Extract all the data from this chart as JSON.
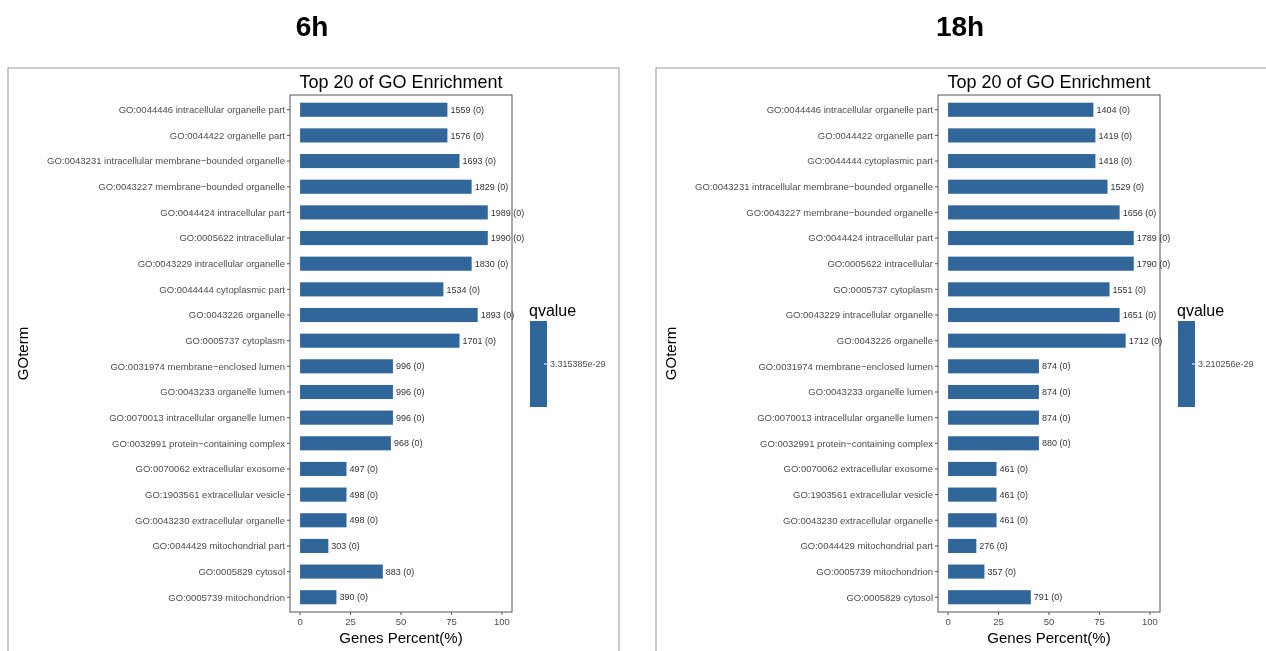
{
  "chart_data": [
    {
      "type": "bar",
      "orientation": "horizontal",
      "subtitle": "6h",
      "title": "Top 20 of GO Enrichment",
      "xlabel": "Genes Percent(%)",
      "ylabel": "GOterm",
      "clabel": "qvalue",
      "color": "#31669a",
      "categories": [
        "GO:0044446 intracellular organelle part",
        "GO:0044422 organelle part",
        "GO:0043231 intracellular membrane−bounded organelle",
        "GO:0043227 membrane−bounded organelle",
        "GO:0044424 intracellular part",
        "GO:0005622 intracellular",
        "GO:0043229 intracellular organelle",
        "GO:0044444 cytoplasmic part",
        "GO:0043226 organelle",
        "GO:0005737 cytoplasm",
        "GO:0031974 membrane−enclosed lumen",
        "GO:0043233 organelle lumen",
        "GO:0070013 intracellular organelle lumen",
        "GO:0032991 protein−containing complex",
        "GO:0070062 extracellular exosome",
        "GO:1903561 extracellular vesicle",
        "GO:0043230 extracellular organelle",
        "GO:0044429 mitochondrial part",
        "GO:0005829 cytosol",
        "GO:0005739 mitochondrion"
      ],
      "values": [
        73,
        73,
        79,
        85,
        93,
        93,
        85,
        71,
        88,
        79,
        46,
        46,
        46,
        45,
        23,
        23,
        23,
        14,
        41,
        18
      ],
      "annotations": [
        "3.315385e-29",
        {
          "text": "1559 (0)",
          "x": 73,
          "y": "GO:0044446 intracellular organelle part"
        },
        {
          "text": "1576 (0)",
          "x": 73,
          "y": "GO:0044422 organelle part"
        },
        {
          "text": "1693 (0)",
          "x": 79,
          "y": "GO:0043231 intracellular membrane−bounded organelle"
        },
        {
          "text": "1829 (0)",
          "x": 85,
          "y": "GO:0043227 membrane−bounded organelle"
        },
        {
          "text": "1989 (0)",
          "x": 93,
          "y": "GO:0044424 intracellular part"
        },
        {
          "text": "1990 (0)",
          "x": 93,
          "y": "GO:0005622 intracellular"
        },
        {
          "text": "1830 (0)",
          "x": 85,
          "y": "GO:0043229 intracellular organelle"
        },
        {
          "text": "1534 (0)",
          "x": 71,
          "y": "GO:0044444 cytoplasmic part"
        },
        {
          "text": "1893 (0)",
          "x": 88,
          "y": "GO:0043226 organelle"
        },
        {
          "text": "1701 (0)",
          "x": 79,
          "y": "GO:0005737 cytoplasm"
        },
        {
          "text": "996 (0)",
          "x": 46,
          "y": "GO:0031974 membrane−enclosed lumen"
        },
        {
          "text": "996 (0)",
          "x": 46,
          "y": "GO:0043233 organelle lumen"
        },
        {
          "text": "996 (0)",
          "x": 46,
          "y": "GO:0070013 intracellular organelle lumen"
        },
        {
          "text": "968 (0)",
          "x": 45,
          "y": "GO:0032991 protein−containing complex"
        },
        {
          "text": "497 (0)",
          "x": 23,
          "y": "GO:0070062 extracellular exosome"
        },
        {
          "text": "498 (0)",
          "x": 23,
          "y": "GO:1903561 extracellular vesicle"
        },
        {
          "text": "498 (0)",
          "x": 23,
          "y": "GO:0043230 extracellular organelle"
        },
        {
          "text": "303 (0)",
          "x": 14,
          "y": "GO:0044429 mitochondrial part"
        },
        {
          "text": "883 (0)",
          "x": 41,
          "y": "GO:0005829 cytosol"
        },
        {
          "text": "390 (0)",
          "x": 18,
          "y": "GO:0005739 mitochondrion"
        }
      ],
      "xlim": [
        -5,
        105
      ],
      "xticks": [
        0,
        25,
        50,
        75,
        100
      ]
    },
    {
      "type": "bar",
      "orientation": "horizontal",
      "subtitle": "18h",
      "title": "Top 20 of GO Enrichment",
      "xlabel": "Genes Percent(%)",
      "ylabel": "GOterm",
      "clabel": "qvalue",
      "color": "#31669a",
      "categories": [
        "GO:0044446 intracellular organelle part",
        "GO:0044422 organelle part",
        "GO:0044444 cytoplasmic part",
        "GO:0043231 intracellular membrane−bounded organelle",
        "GO:0043227 membrane−bounded organelle",
        "GO:0044424 intracellular part",
        "GO:0005622 intracellular",
        "GO:0005737 cytoplasm",
        "GO:0043229 intracellular organelle",
        "GO:0043226 organelle",
        "GO:0031974 membrane−enclosed lumen",
        "GO:0043233 organelle lumen",
        "GO:0070013 intracellular organelle lumen",
        "GO:0032991 protein−containing complex",
        "GO:0070062 extracellular exosome",
        "GO:1903561 extracellular vesicle",
        "GO:0043230 extracellular organelle",
        "GO:0044429 mitochondrial part",
        "GO:0005739 mitochondrion",
        "GO:0005829 cytosol"
      ],
      "values": [
        72,
        73,
        73,
        79,
        85,
        92,
        92,
        80,
        85,
        88,
        45,
        45,
        45,
        45,
        24,
        24,
        24,
        14,
        18,
        41
      ],
      "annotations": [
        "3.210256e-29",
        {
          "text": "1404 (0)",
          "x": 72,
          "y": "GO:0044446 intracellular organelle part"
        },
        {
          "text": "1419 (0)",
          "x": 73,
          "y": "GO:0044422 organelle part"
        },
        {
          "text": "1418 (0)",
          "x": 73,
          "y": "GO:0044444 cytoplasmic part"
        },
        {
          "text": "1529 (0)",
          "x": 79,
          "y": "GO:0043231 intracellular membrane−bounded organelle"
        },
        {
          "text": "1656 (0)",
          "x": 85,
          "y": "GO:0043227 membrane−bounded organelle"
        },
        {
          "text": "1789 (0)",
          "x": 92,
          "y": "GO:0044424 intracellular part"
        },
        {
          "text": "1790 (0)",
          "x": 92,
          "y": "GO:0005622 intracellular"
        },
        {
          "text": "1551 (0)",
          "x": 80,
          "y": "GO:0005737 cytoplasm"
        },
        {
          "text": "1651 (0)",
          "x": 85,
          "y": "GO:0043229 intracellular organelle"
        },
        {
          "text": "1712 (0)",
          "x": 88,
          "y": "GO:0043226 organelle"
        },
        {
          "text": "874 (0)",
          "x": 45,
          "y": "GO:0031974 membrane−enclosed lumen"
        },
        {
          "text": "874 (0)",
          "x": 45,
          "y": "GO:0043233 organelle lumen"
        },
        {
          "text": "874 (0)",
          "x": 45,
          "y": "GO:0070013 intracellular organelle lumen"
        },
        {
          "text": "880 (0)",
          "x": 45,
          "y": "GO:0032991 protein−containing complex"
        },
        {
          "text": "461 (0)",
          "x": 24,
          "y": "GO:0070062 extracellular exosome"
        },
        {
          "text": "461 (0)",
          "x": 24,
          "y": "GO:1903561 extracellular vesicle"
        },
        {
          "text": "461 (0)",
          "x": 24,
          "y": "GO:0043230 extracellular organelle"
        },
        {
          "text": "276 (0)",
          "x": 14,
          "y": "GO:0044429 mitochondrial part"
        },
        {
          "text": "357 (0)",
          "x": 18,
          "y": "GO:0005739 mitochondrion"
        },
        {
          "text": "791 (0)",
          "x": 41,
          "y": "GO:0005829 cytosol"
        }
      ],
      "xlim": [
        -5,
        105
      ],
      "xticks": [
        0,
        25,
        50,
        75,
        100
      ]
    }
  ]
}
